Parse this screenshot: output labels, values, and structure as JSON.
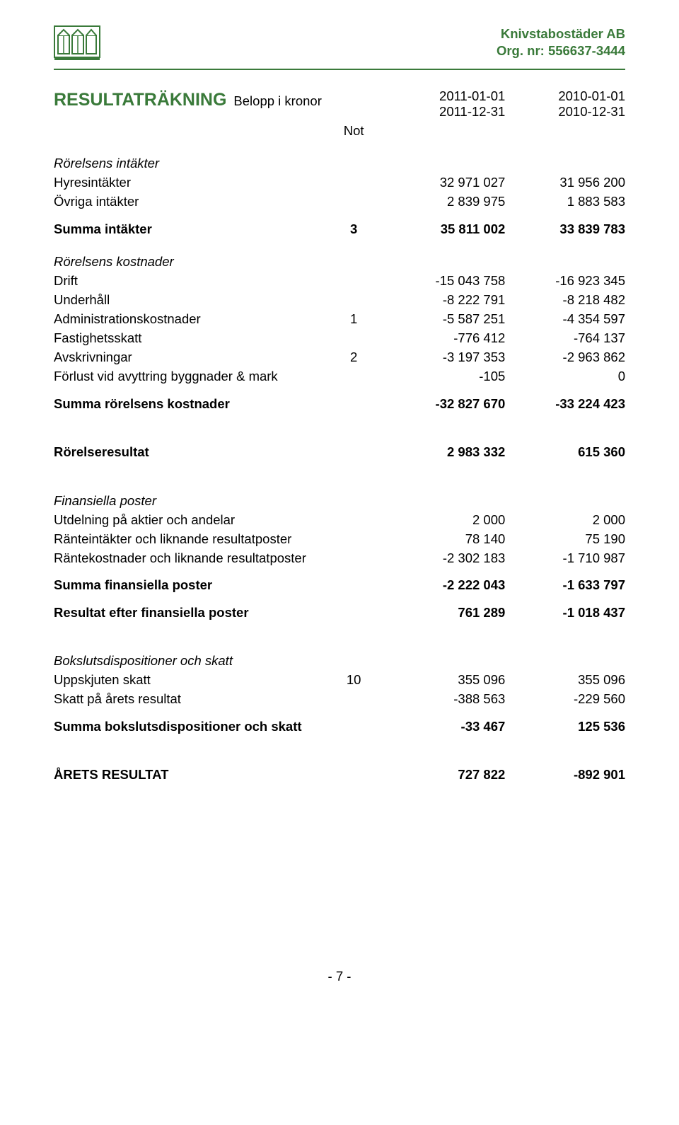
{
  "header": {
    "company": "Knivstabostäder AB",
    "orgnr_label": "Org. nr: 556637-3444"
  },
  "title": "RESULTATRÄKNING",
  "subtitle": "Belopp i kronor",
  "note_header": "Not",
  "periods": {
    "col1_line1": "2011-01-01",
    "col1_line2": "2011-12-31",
    "col2_line1": "2010-01-01",
    "col2_line2": "2010-12-31"
  },
  "rows": [
    {
      "kind": "italic",
      "label": "Rörelsens intäkter",
      "note": "",
      "c1": "",
      "c2": "",
      "gap": "section-gap"
    },
    {
      "kind": "",
      "label": "Hyresintäkter",
      "note": "",
      "c1": "32 971 027",
      "c2": "31 956 200"
    },
    {
      "kind": "",
      "label": "Övriga intäkter",
      "note": "",
      "c1": "2 839 975",
      "c2": "1 883 583"
    },
    {
      "kind": "bold",
      "label": "Summa intäkter",
      "note": "3",
      "c1": "35 811 002",
      "c2": "33 839 783",
      "gap": "small-gap"
    },
    {
      "kind": "italic",
      "label": "Rörelsens kostnader",
      "note": "",
      "c1": "",
      "c2": "",
      "gap": "section-gap"
    },
    {
      "kind": "",
      "label": "Drift",
      "note": "",
      "c1": "-15 043 758",
      "c2": "-16 923 345"
    },
    {
      "kind": "",
      "label": "Underhåll",
      "note": "",
      "c1": "-8 222 791",
      "c2": "-8 218 482"
    },
    {
      "kind": "",
      "label": "Administrationskostnader",
      "note": "1",
      "c1": "-5 587 251",
      "c2": "-4 354 597"
    },
    {
      "kind": "",
      "label": "Fastighetsskatt",
      "note": "",
      "c1": "-776 412",
      "c2": "-764 137"
    },
    {
      "kind": "",
      "label": "Avskrivningar",
      "note": "2",
      "c1": "-3 197 353",
      "c2": "-2 963 862"
    },
    {
      "kind": "",
      "label": "Förlust vid avyttring byggnader & mark",
      "note": "",
      "c1": "-105",
      "c2": "0"
    },
    {
      "kind": "bold",
      "label": "Summa rörelsens kostnader",
      "note": "",
      "c1": "-32 827 670",
      "c2": "-33 224 423",
      "gap": "small-gap"
    },
    {
      "kind": "bold",
      "label": "Rörelseresultat",
      "note": "",
      "c1": "2 983 332",
      "c2": "615 360",
      "gap": "big-gap"
    },
    {
      "kind": "italic",
      "label": "Finansiella poster",
      "note": "",
      "c1": "",
      "c2": "",
      "gap": "big-gap"
    },
    {
      "kind": "",
      "label": "Utdelning på aktier och andelar",
      "note": "",
      "c1": "2 000",
      "c2": "2 000"
    },
    {
      "kind": "",
      "label": "Ränteintäkter och liknande resultatposter",
      "note": "",
      "c1": "78 140",
      "c2": "75 190"
    },
    {
      "kind": "",
      "label": "Räntekostnader och liknande resultatposter",
      "note": "",
      "c1": "-2 302 183",
      "c2": "-1 710 987"
    },
    {
      "kind": "bold",
      "label": "Summa finansiella poster",
      "note": "",
      "c1": "-2 222 043",
      "c2": "-1 633 797",
      "gap": "small-gap"
    },
    {
      "kind": "bold",
      "label": "Resultat efter finansiella poster",
      "note": "",
      "c1": "761 289",
      "c2": "-1 018 437",
      "gap": "small-gap"
    },
    {
      "kind": "italic",
      "label": "Bokslutsdispositioner och skatt",
      "note": "",
      "c1": "",
      "c2": "",
      "gap": "big-gap"
    },
    {
      "kind": "",
      "label": "Uppskjuten skatt",
      "note": "10",
      "c1": "355 096",
      "c2": "355 096"
    },
    {
      "kind": "",
      "label": "Skatt på årets resultat",
      "note": "",
      "c1": "-388 563",
      "c2": "-229 560"
    },
    {
      "kind": "bold",
      "label": "Summa bokslutsdispositioner och skatt",
      "note": "",
      "c1": "-33 467",
      "c2": "125 536",
      "gap": "small-gap"
    },
    {
      "kind": "bold",
      "label": "ÅRETS RESULTAT",
      "note": "",
      "c1": "727 822",
      "c2": "-892 901",
      "gap": "big-gap"
    }
  ],
  "page_number": "- 7 -",
  "colors": {
    "green": "#3a7a3a",
    "text": "#000000",
    "bg": "#ffffff"
  }
}
